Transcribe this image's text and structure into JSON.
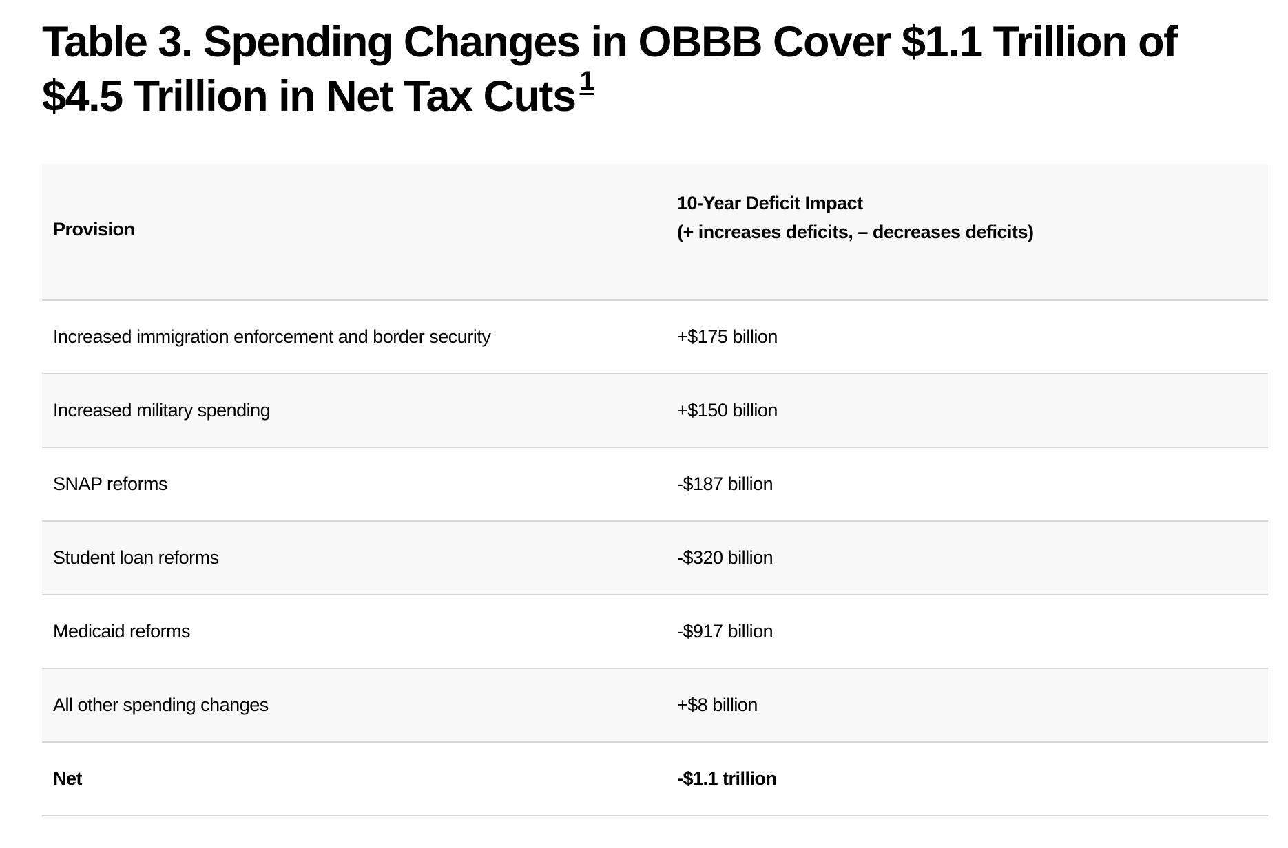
{
  "title": {
    "text": "Table 3. Spending Changes in OBBB Cover $1.1 Trillion of $4.5 Trillion in Net Tax Cuts",
    "footnote": "1"
  },
  "table": {
    "headers": {
      "provision": "Provision",
      "impact_line1": "10-Year Deficit Impact",
      "impact_line2": "(+ increases deficits, – decreases deficits)"
    },
    "rows": [
      {
        "provision": "Increased immigration enforcement and border security",
        "impact": "+$175 billion"
      },
      {
        "provision": "Increased military spending",
        "impact": "+$150 billion"
      },
      {
        "provision": "SNAP reforms",
        "impact": "-$187 billion"
      },
      {
        "provision": "Student loan reforms",
        "impact": "-$320 billion"
      },
      {
        "provision": "Medicaid reforms",
        "impact": "-$917 billion"
      },
      {
        "provision": "All other spending changes",
        "impact": "+$8 billion"
      }
    ],
    "net": {
      "provision": "Net",
      "impact": "-$1.1 trillion"
    }
  }
}
